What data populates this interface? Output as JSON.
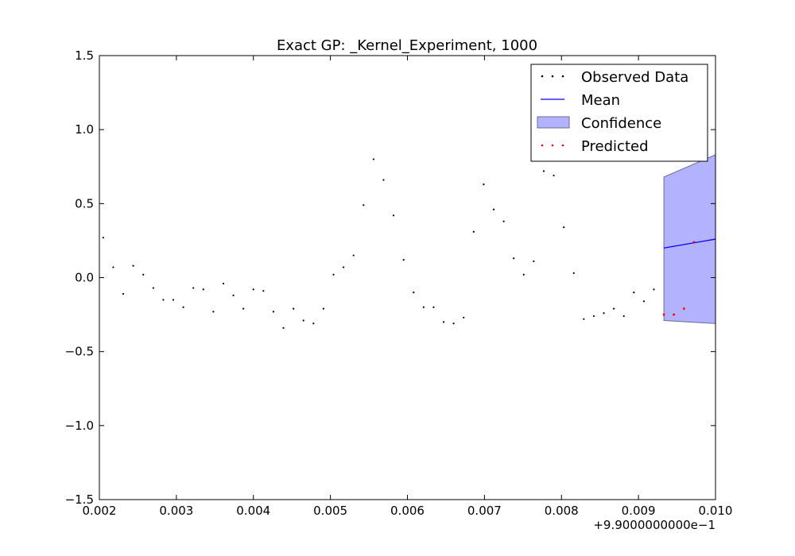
{
  "chart_data": {
    "type": "scatter",
    "title": "Exact GP: _Kernel_Experiment, 1000",
    "xlabel": "",
    "ylabel": "",
    "x_offset_label": "+9.9000000000e−1",
    "xlim": [
      0.002,
      0.01
    ],
    "ylim": [
      -1.5,
      1.5
    ],
    "x_ticks": [
      0.002,
      0.003,
      0.004,
      0.005,
      0.006,
      0.007,
      0.008,
      0.009,
      0.01
    ],
    "x_tick_labels": [
      "0.002",
      "0.003",
      "0.004",
      "0.005",
      "0.006",
      "0.007",
      "0.008",
      "0.009",
      "0.010"
    ],
    "y_ticks": [
      -1.5,
      -1.0,
      -0.5,
      0.0,
      0.5,
      1.0,
      1.5
    ],
    "y_tick_labels": [
      "−1.5",
      "−1.0",
      "−0.5",
      "0.0",
      "0.5",
      "1.0",
      "1.5"
    ],
    "grid": false,
    "legend_position": "top-right",
    "legend": [
      {
        "label": "Observed Data",
        "kind": "dots",
        "color": "#000000"
      },
      {
        "label": "Mean",
        "kind": "line",
        "color": "#0000ff"
      },
      {
        "label": "Confidence",
        "kind": "patch",
        "color": "#7f7fff"
      },
      {
        "label": "Predicted",
        "kind": "dots",
        "color": "#ff0000"
      }
    ],
    "series": [
      {
        "name": "Observed Data",
        "kind": "scatter",
        "color": "#000000",
        "x": [
          0.00205,
          0.00218,
          0.00231,
          0.00244,
          0.00257,
          0.0027,
          0.00283,
          0.00296,
          0.00309,
          0.00322,
          0.00335,
          0.00348,
          0.00361,
          0.00374,
          0.00387,
          0.004,
          0.00413,
          0.00426,
          0.00439,
          0.00452,
          0.00465,
          0.00478,
          0.00491,
          0.00504,
          0.00517,
          0.0053,
          0.00543,
          0.00556,
          0.00569,
          0.00582,
          0.00595,
          0.00608,
          0.00621,
          0.00634,
          0.00647,
          0.0066,
          0.00673,
          0.00686,
          0.00699,
          0.00712,
          0.00725,
          0.00738,
          0.00751,
          0.00764,
          0.00777,
          0.0079,
          0.00803,
          0.00816,
          0.00829,
          0.00842,
          0.00855,
          0.00868,
          0.00881,
          0.00894,
          0.00907,
          0.0092
        ],
        "y": [
          0.27,
          0.07,
          -0.11,
          0.08,
          0.02,
          -0.07,
          -0.15,
          -0.15,
          -0.2,
          -0.07,
          -0.08,
          -0.23,
          -0.04,
          -0.12,
          -0.21,
          -0.08,
          -0.09,
          -0.23,
          -0.34,
          -0.21,
          -0.29,
          -0.31,
          -0.21,
          0.02,
          0.07,
          0.15,
          0.49,
          0.8,
          0.66,
          0.42,
          0.12,
          -0.1,
          -0.2,
          -0.2,
          -0.3,
          -0.31,
          -0.27,
          0.31,
          0.63,
          0.46,
          0.38,
          0.13,
          0.02,
          0.11,
          0.72,
          0.69,
          0.34,
          0.03,
          -0.28,
          -0.26,
          -0.24,
          -0.21,
          -0.26,
          -0.1,
          -0.16,
          -0.08
        ]
      },
      {
        "name": "Mean",
        "kind": "line",
        "color": "#0000ff",
        "x": [
          0.00933,
          0.01
        ],
        "y": [
          0.2,
          0.26
        ]
      },
      {
        "name": "Confidence",
        "kind": "band",
        "color": "#7f7fff",
        "x": [
          0.00933,
          0.01
        ],
        "upper": [
          0.68,
          0.83
        ],
        "lower": [
          -0.29,
          -0.31
        ]
      },
      {
        "name": "Predicted",
        "kind": "scatter",
        "color": "#ff0000",
        "x": [
          0.00933,
          0.00946,
          0.00959,
          0.00972
        ],
        "y": [
          -0.25,
          -0.25,
          -0.21,
          0.24
        ]
      }
    ]
  }
}
